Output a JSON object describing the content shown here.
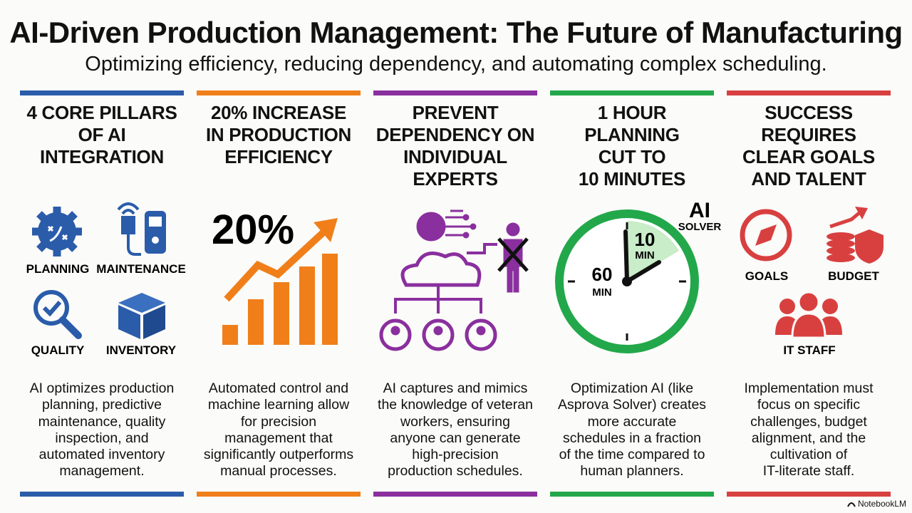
{
  "header": {
    "title": "AI-Driven Production Management: The Future of Manufacturing",
    "subtitle": "Optimizing efficiency, reducing dependency, and automating complex scheduling."
  },
  "columns": [
    {
      "heading_lines": [
        "4 CORE PILLARS",
        "OF AI",
        "INTEGRATION"
      ],
      "icon_labels": [
        "PLANNING",
        "MAINTENANCE",
        "QUALITY",
        "INVENTORY"
      ],
      "body_lines": [
        "AI optimizes production",
        "planning, predictive",
        "maintenance, quality",
        "inspection, and",
        "automated inventory",
        "management."
      ]
    },
    {
      "heading_lines": [
        "20% INCREASE",
        "IN PRODUCTION",
        "EFFICIENCY"
      ],
      "big_label": "20%",
      "body_lines": [
        "Automated control and",
        "machine learning allow",
        "for precision",
        "management that",
        "significantly outperforms",
        "manual processes."
      ]
    },
    {
      "heading_lines": [
        "PREVENT",
        "DEPENDENCY ON",
        "INDIVIDUAL",
        "EXPERTS"
      ],
      "body_lines": [
        "AI captures and mimics",
        "the knowledge of veteran",
        "workers, ensuring",
        "anyone can generate",
        "high-precision",
        "production schedules."
      ]
    },
    {
      "heading_lines": [
        "1 HOUR PLANNING",
        "CUT TO",
        "10 MINUTES"
      ],
      "clock_labels": {
        "ai": "AI",
        "solver": "SOLVER",
        "ten": "10",
        "ten_unit": "MIN",
        "sixty": "60",
        "sixty_unit": "MIN"
      },
      "body_lines": [
        "Optimization AI (like",
        "Asprova Solver) creates",
        "more accurate",
        "schedules in a fraction",
        "of the time compared to",
        "human planners."
      ]
    },
    {
      "heading_lines": [
        "SUCCESS REQUIRES",
        "CLEAR GOALS",
        "AND TALENT"
      ],
      "icon_labels": [
        "GOALS",
        "BUDGET",
        "IT STAFF"
      ],
      "body_lines": [
        "Implementation must",
        "focus on specific",
        "challenges, budget",
        "alignment, and the",
        "cultivation of",
        "IT-literate staff."
      ]
    }
  ],
  "footer": {
    "brand": "NotebookLM"
  }
}
